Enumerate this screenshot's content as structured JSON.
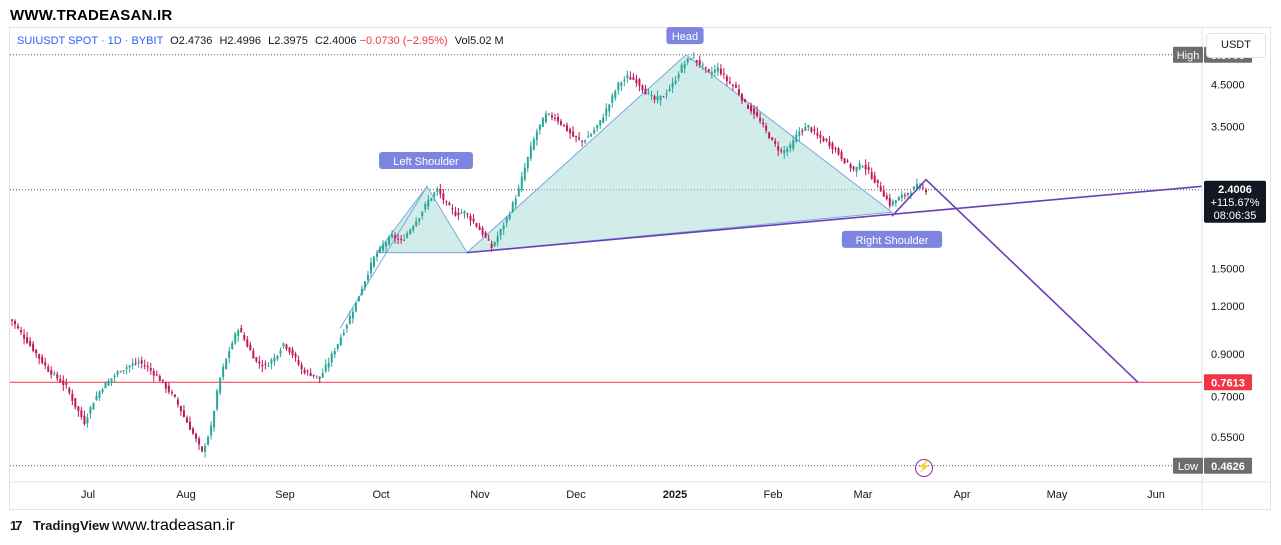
{
  "header": {
    "watermark": "WWW.TRADEASAN.IR"
  },
  "legend": {
    "symbol": "SUIUSDT SPOT · 1D · BYBIT",
    "o_label": "O",
    "o": "2.4736",
    "h_label": "H",
    "h": "2.4996",
    "l_label": "L",
    "l": "2.3975",
    "c_label": "C",
    "c": "2.4006",
    "change": "−0.0730 (−2.95%)",
    "vol_label": "Vol",
    "vol": "5.02 M"
  },
  "unit_button": "USDT",
  "footer": {
    "brand": "TradingView",
    "url": "www.tradeasan.ir"
  },
  "colors": {
    "up": "#26a69a",
    "down": "#c2185b",
    "pattern_fill": "#b2dfdb",
    "neckline": "#6a3fb8",
    "resistance": "#f23645",
    "grid": "#787b86"
  },
  "chart_data": {
    "type": "candlestick",
    "scale": "log",
    "ylim": [
      0.42,
      6.3
    ],
    "x_ticks": [
      "Jul",
      "Aug",
      "Sep",
      "Oct",
      "Nov",
      "Dec",
      "2025",
      "Feb",
      "Mar",
      "Apr",
      "May",
      "Jun"
    ],
    "y_ticks": [
      "4.5000",
      "3.5000",
      "1.5000",
      "1.2000",
      "0.9000",
      "0.7000",
      "0.5500"
    ],
    "price_labels": {
      "high_label": "High",
      "high": "5.3700",
      "current": "2.4006",
      "current_change": "+115.67%",
      "countdown": "08:06:35",
      "level": "0.7613",
      "low_label": "Low",
      "low": "0.4626"
    },
    "annotations": {
      "left_shoulder": "Left Shoulder",
      "head": "Head",
      "right_shoulder": "Right Shoulder"
    },
    "pattern": "head-and-shoulders",
    "key_points": {
      "left_shoulder_peak": 2.45,
      "head_peak": 5.37,
      "right_shoulder_peak": 2.55,
      "neckline_start": 1.65,
      "neckline_end": 2.45,
      "projection_target": 0.7613
    },
    "series_close_path": [
      1.1,
      1.02,
      0.95,
      0.88,
      0.82,
      0.78,
      0.74,
      0.66,
      0.6,
      0.68,
      0.74,
      0.78,
      0.82,
      0.84,
      0.86,
      0.83,
      0.79,
      0.74,
      0.69,
      0.62,
      0.56,
      0.5,
      0.58,
      0.78,
      0.92,
      1.05,
      0.95,
      0.86,
      0.84,
      0.88,
      0.96,
      0.9,
      0.82,
      0.8,
      0.78,
      0.86,
      0.96,
      1.08,
      1.22,
      1.4,
      1.6,
      1.72,
      1.82,
      1.76,
      1.9,
      2.05,
      2.25,
      2.4,
      2.2,
      2.08,
      2.1,
      1.98,
      1.85,
      1.7,
      1.88,
      2.1,
      2.4,
      2.9,
      3.4,
      3.75,
      3.7,
      3.5,
      3.3,
      3.2,
      3.35,
      3.6,
      4.0,
      4.5,
      4.7,
      4.6,
      4.3,
      4.1,
      4.2,
      4.5,
      5.0,
      5.3,
      5.1,
      4.8,
      4.95,
      4.6,
      4.4,
      4.0,
      3.8,
      3.5,
      3.2,
      3.0,
      3.1,
      3.4,
      3.5,
      3.3,
      3.2,
      3.05,
      2.85,
      2.7,
      2.8,
      2.6,
      2.4,
      2.2,
      2.28,
      2.36,
      2.45,
      2.4
    ]
  }
}
